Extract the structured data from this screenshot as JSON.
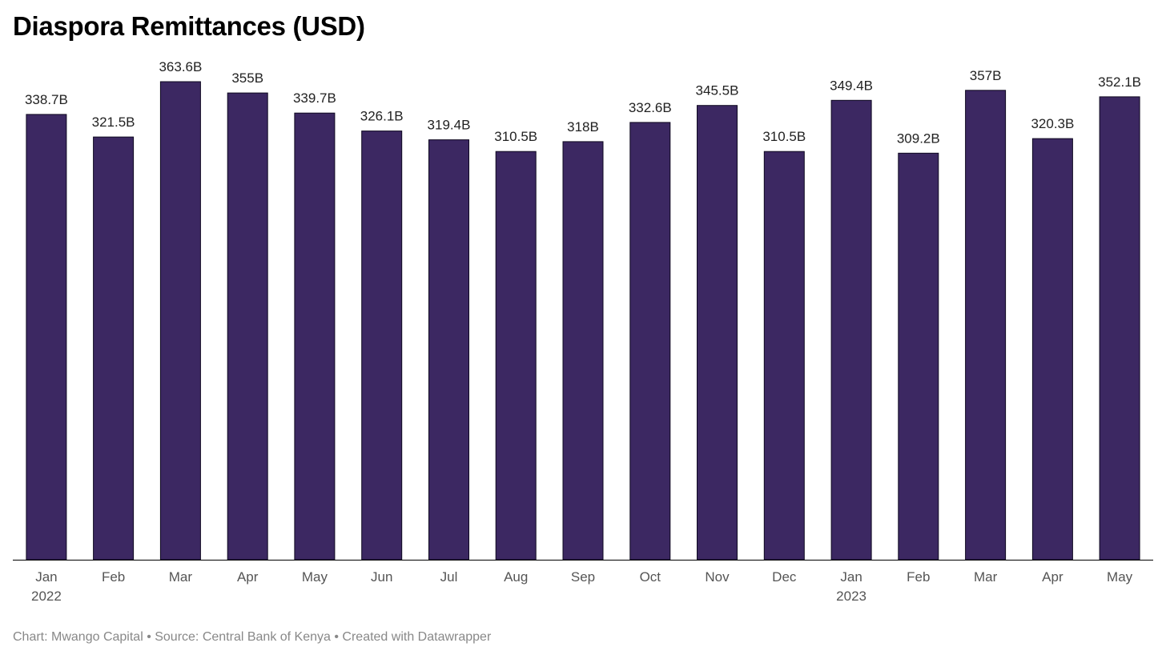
{
  "title": "Diaspora Remittances (USD)",
  "footer": {
    "credit": "Chart: Mwango Capital • Source: Central Bank of Kenya • Created with Datawrapper"
  },
  "colors": {
    "bar": "#3c2862",
    "bar_stroke": "#0e0820",
    "axis": "#000000"
  },
  "chart_data": {
    "type": "bar",
    "title": "Diaspora Remittances (USD)",
    "xlabel": "",
    "ylabel": "",
    "ylim": [
      0,
      363.6
    ],
    "grid": false,
    "categories": [
      "Jan 2022",
      "Feb",
      "Mar",
      "Apr",
      "May",
      "Jun",
      "Jul",
      "Aug",
      "Sep",
      "Oct",
      "Nov",
      "Dec",
      "Jan 2023",
      "Feb",
      "Mar",
      "Apr",
      "May"
    ],
    "tick_labels": [
      [
        "Jan",
        "2022"
      ],
      [
        "Feb"
      ],
      [
        "Mar"
      ],
      [
        "Apr"
      ],
      [
        "May"
      ],
      [
        "Jun"
      ],
      [
        "Jul"
      ],
      [
        "Aug"
      ],
      [
        "Sep"
      ],
      [
        "Oct"
      ],
      [
        "Nov"
      ],
      [
        "Dec"
      ],
      [
        "Jan",
        "2023"
      ],
      [
        "Feb"
      ],
      [
        "Mar"
      ],
      [
        "Apr"
      ],
      [
        "May"
      ]
    ],
    "values": [
      338.7,
      321.5,
      363.6,
      355,
      339.7,
      326.1,
      319.4,
      310.5,
      318,
      332.6,
      345.5,
      310.5,
      349.4,
      309.2,
      357,
      320.3,
      352.1
    ],
    "value_labels": [
      "338.7B",
      "321.5B",
      "363.6B",
      "355B",
      "339.7B",
      "326.1B",
      "319.4B",
      "310.5B",
      "318B",
      "332.6B",
      "345.5B",
      "310.5B",
      "349.4B",
      "309.2B",
      "357B",
      "320.3B",
      "352.1B"
    ]
  }
}
